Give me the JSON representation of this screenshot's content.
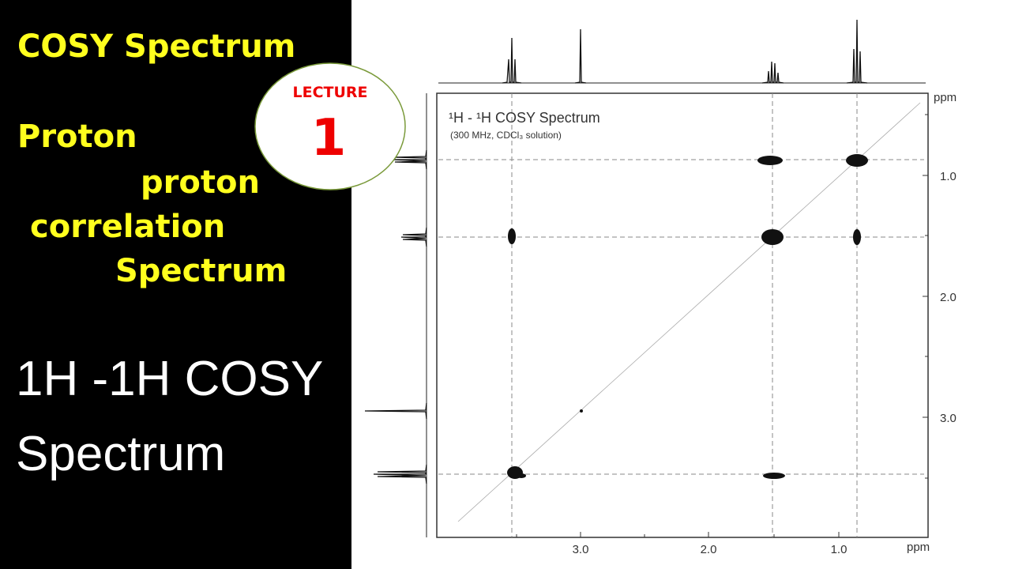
{
  "left_panel": {
    "heading": "COSY Spectrum",
    "lines": [
      "Proton",
      "proton",
      "correlation",
      "Spectrum"
    ],
    "big_title": [
      "1H -1H COSY",
      "Spectrum"
    ]
  },
  "badge": {
    "label": "LECTURE",
    "number": "1"
  },
  "spectrum": {
    "title": "¹H - ¹H COSY Spectrum",
    "subtitle": "(300 MHz,  CDCl₃ solution)",
    "y_unit": "ppm",
    "y_ticks": [
      "1.0",
      "2.0",
      "3.0"
    ],
    "x_unit": "ppm",
    "x_ticks": [
      "3.0",
      "2.0",
      "1.0"
    ]
  }
}
